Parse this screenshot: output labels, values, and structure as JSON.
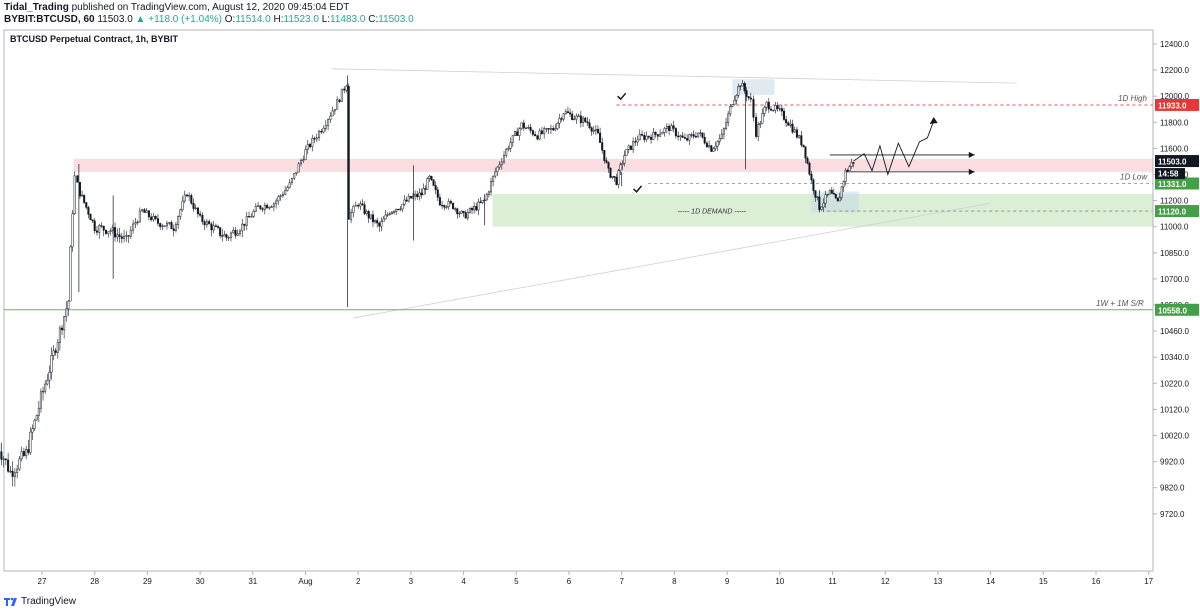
{
  "header": {
    "publisher": "Tidal_Trading",
    "published_text": "published on TradingView.com, August 12, 2020 09:45:04 EDT",
    "symbol": "BYBIT:BTCUSD, 60",
    "last": "11503.0",
    "change": "▲ +118.0 (+1.04%)",
    "o_label": "O:",
    "o_value": "11514.0",
    "h_label": "H:",
    "h_value": "11523.0",
    "l_label": "L:",
    "l_value": "11483.0",
    "c_label": "C:",
    "c_value": "11503.0"
  },
  "footer": {
    "brand": "TradingView"
  },
  "colors": {
    "up": "#ffffff",
    "down": "#131722",
    "resistance_zone": "#f8d7da",
    "demand_zone": "#d5ebcf",
    "high_line": "#e05555",
    "support_line": "#7cb342"
  },
  "chart_data": {
    "type": "candlestick",
    "title": "BTCUSD Perpetual Contract, 1h, BYBIT",
    "xlabel": "",
    "ylabel": "",
    "ylim": [
      9640,
      12500
    ],
    "yticks": [
      12400,
      12200,
      12000,
      11800,
      11600,
      11400,
      11200,
      11000,
      10850,
      10700,
      10580,
      10460,
      10340,
      10220,
      10120,
      10020,
      9920,
      9820,
      9720
    ],
    "ytick_labels": [
      "12400.0",
      "12200.0",
      "12000.0",
      "11800.0",
      "11600.0",
      "11400.0",
      "11200.0",
      "11000.0",
      "10850.0",
      "10700.0",
      "10580.0",
      "10460.0",
      "10340.0",
      "10220.0",
      "10120.0",
      "10020.0",
      "9920.0",
      "9820.0",
      "9720.0"
    ],
    "xticks": [
      "27",
      "28",
      "29",
      "30",
      "31",
      "Aug",
      "2",
      "3",
      "4",
      "5",
      "6",
      "7",
      "8",
      "9",
      "10",
      "11",
      "12",
      "13",
      "14",
      "15",
      "16",
      "17"
    ],
    "grid": false,
    "path_points": [
      [
        -0.9,
        10010
      ],
      [
        -0.6,
        9880
      ],
      [
        -0.3,
        9950
      ],
      [
        0.1,
        10250
      ],
      [
        0.5,
        10600
      ],
      [
        0.62,
        11380
      ],
      [
        0.72,
        11260
      ],
      [
        1.0,
        11000
      ],
      [
        1.3,
        10980
      ],
      [
        1.6,
        10920
      ],
      [
        1.9,
        11120
      ],
      [
        2.2,
        11030
      ],
      [
        2.5,
        11000
      ],
      [
        2.75,
        11260
      ],
      [
        3.0,
        11060
      ],
      [
        3.3,
        10980
      ],
      [
        3.5,
        10940
      ],
      [
        3.8,
        11010
      ],
      [
        4.1,
        11150
      ],
      [
        4.4,
        11180
      ],
      [
        4.7,
        11320
      ],
      [
        5.0,
        11580
      ],
      [
        5.3,
        11750
      ],
      [
        5.6,
        11950
      ],
      [
        5.78,
        12100
      ],
      [
        5.82,
        11080
      ],
      [
        6.0,
        11180
      ],
      [
        6.2,
        11080
      ],
      [
        6.4,
        11000
      ],
      [
        6.6,
        11120
      ],
      [
        6.8,
        11160
      ],
      [
        7.0,
        11220
      ],
      [
        7.2,
        11250
      ],
      [
        7.35,
        11370
      ],
      [
        7.55,
        11190
      ],
      [
        7.8,
        11160
      ],
      [
        8.0,
        11080
      ],
      [
        8.2,
        11140
      ],
      [
        8.4,
        11200
      ],
      [
        8.6,
        11420
      ],
      [
        8.85,
        11620
      ],
      [
        9.1,
        11780
      ],
      [
        9.4,
        11700
      ],
      [
        9.7,
        11750
      ],
      [
        9.9,
        11880
      ],
      [
        10.1,
        11840
      ],
      [
        10.35,
        11800
      ],
      [
        10.55,
        11700
      ],
      [
        10.75,
        11420
      ],
      [
        10.9,
        11350
      ],
      [
        11.05,
        11550
      ],
      [
        11.3,
        11680
      ],
      [
        11.6,
        11700
      ],
      [
        11.9,
        11760
      ],
      [
        12.2,
        11660
      ],
      [
        12.45,
        11720
      ],
      [
        12.7,
        11600
      ],
      [
        12.9,
        11690
      ],
      [
        13.1,
        11960
      ],
      [
        13.25,
        12100
      ],
      [
        13.45,
        11960
      ],
      [
        13.55,
        11720
      ],
      [
        13.75,
        11940
      ],
      [
        14.0,
        11880
      ],
      [
        14.2,
        11780
      ],
      [
        14.45,
        11620
      ],
      [
        14.6,
        11350
      ],
      [
        14.75,
        11150
      ],
      [
        14.95,
        11260
      ],
      [
        15.1,
        11180
      ],
      [
        15.25,
        11420
      ],
      [
        15.4,
        11503
      ]
    ],
    "wick_extremes": [
      {
        "x": 0.7,
        "high": 11480,
        "low": 10640
      },
      {
        "x": 1.35,
        "high": 11240,
        "low": 10700
      },
      {
        "x": 5.8,
        "high": 12160,
        "low": 10570
      },
      {
        "x": 7.05,
        "high": 11470,
        "low": 10920
      },
      {
        "x": 8.4,
        "high": 11250,
        "low": 11010
      },
      {
        "x": 11.0,
        "high": 11420,
        "low": 11310
      },
      {
        "x": 13.35,
        "high": 12100,
        "low": 11440
      },
      {
        "x": 14.75,
        "high": 11280,
        "low": 11110
      }
    ],
    "annotations": {
      "resistance_zone": {
        "from_x": 0.6,
        "to_x": 20.4,
        "top": 11520,
        "bottom": 11420
      },
      "demand_zone": {
        "label": "----- 1D DEMAND -----",
        "from_x": 8.55,
        "to_x": 20.4,
        "top": 11250,
        "bottom": 11000
      },
      "high_1d": {
        "label": "1D High",
        "value": 11933,
        "price_label": "11933.0",
        "from_x": 10.9
      },
      "low_1d": {
        "label": "1D Low",
        "value": 11331,
        "price_label": "11331.0",
        "from_x": 11.5
      },
      "demand_level": {
        "value": 11120,
        "price_label": "11120.0",
        "from_x": 14.9
      },
      "sr_1w_1m": {
        "label": "1W + 1M S/R",
        "value": 10558,
        "price_label": "10558.0"
      },
      "current": {
        "value": 11503,
        "price_label": "11503.0",
        "countdown": "14:58"
      },
      "projection": [
        [
          15.4,
          11503
        ],
        [
          15.6,
          11560
        ],
        [
          15.75,
          11430
        ],
        [
          15.9,
          11620
        ],
        [
          16.05,
          11400
        ],
        [
          16.25,
          11640
        ],
        [
          16.45,
          11460
        ],
        [
          16.65,
          11650
        ],
        [
          16.8,
          11680
        ],
        [
          16.92,
          11810
        ]
      ],
      "breakout_arrows": [
        {
          "from_x": 14.95,
          "to_x": 17.7,
          "value": 11550
        },
        {
          "from_x": 15.25,
          "to_x": 17.7,
          "value": 11420
        }
      ],
      "checks": [
        {
          "x": 11.0,
          "value": 12000
        },
        {
          "x": 11.3,
          "value": 11290
        }
      ],
      "trendlines": [
        {
          "from": [
            5.5,
            12210
          ],
          "to": [
            18.5,
            12100
          ]
        },
        {
          "from": [
            5.9,
            10520
          ],
          "to": [
            18.0,
            11180
          ]
        }
      ],
      "highlight_boxes": [
        {
          "from_x": 13.1,
          "to_x": 13.9,
          "top": 12130,
          "bottom": 12010
        },
        {
          "from_x": 14.6,
          "to_x": 15.5,
          "top": 11270,
          "bottom": 11110
        }
      ]
    }
  }
}
